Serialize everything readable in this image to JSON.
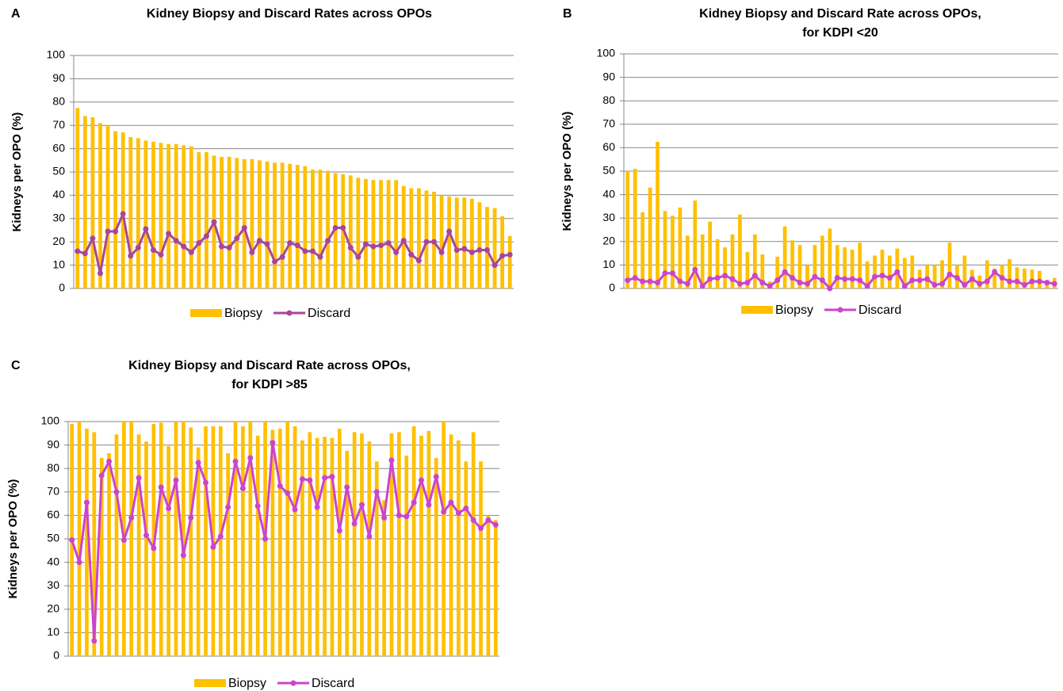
{
  "chart_data": [
    {
      "type": "bar-line",
      "label": "A",
      "title": [
        "Kidney Biopsy and Discard Rates across OPOs"
      ],
      "ylabel": "Kidneys per OPO (%)",
      "categories": [
        null,
        null,
        null,
        null,
        null,
        null,
        null,
        null,
        null,
        null,
        null,
        null,
        null,
        null,
        null,
        null,
        null,
        null,
        null,
        null,
        null,
        null,
        null,
        null,
        null,
        null,
        null,
        null,
        null,
        null,
        null,
        null,
        null,
        null,
        null,
        null,
        null,
        null,
        null,
        null,
        null,
        null,
        null,
        null,
        null,
        null,
        null,
        null,
        null,
        null,
        null,
        null,
        null,
        null,
        null,
        null,
        null,
        null
      ],
      "series": [
        {
          "name": "Biopsy",
          "type": "bar",
          "color": "#FFC000",
          "values": [
            77.5,
            74,
            73.5,
            71,
            70,
            67.5,
            67,
            65,
            64.5,
            63.5,
            63,
            62.5,
            62,
            62,
            61.5,
            61,
            58.5,
            58.5,
            57,
            56.5,
            56.5,
            56,
            55.5,
            55.5,
            55,
            54.5,
            54,
            54,
            53.5,
            53,
            52.5,
            51,
            51,
            50.5,
            49.5,
            49,
            48.5,
            47.5,
            47,
            46.5,
            46.5,
            46.5,
            46.5,
            44,
            43,
            43,
            42,
            41.5,
            40,
            39.5,
            39,
            39,
            38.5,
            37,
            35,
            34.5,
            31,
            22.5
          ]
        },
        {
          "name": "Discard",
          "type": "line",
          "color": "#A8459C",
          "values": [
            16,
            15,
            21.5,
            6.5,
            24.5,
            24.5,
            32,
            14,
            17.5,
            25.5,
            16.5,
            14.5,
            23.5,
            20.5,
            18,
            15.5,
            19.5,
            22.5,
            28.5,
            18,
            17.5,
            21.5,
            26,
            15.5,
            20.5,
            19,
            11.5,
            13.5,
            19.5,
            18.5,
            16,
            16,
            13.5,
            20.5,
            26,
            26,
            17.5,
            13.5,
            19,
            18,
            18.5,
            19.5,
            15.5,
            20.5,
            14.5,
            12,
            20,
            20,
            15.5,
            24.5,
            16.5,
            17,
            15.5,
            16.5,
            16.5,
            10,
            14,
            14.5
          ]
        }
      ],
      "ylim": [
        0,
        100
      ],
      "yticks": [
        0,
        10,
        20,
        30,
        40,
        50,
        60,
        70,
        80,
        90,
        100
      ],
      "grid": true,
      "legend": "bottom"
    },
    {
      "type": "bar-line",
      "label": "B",
      "title": [
        "Kidney Biopsy and Discard Rate across OPOs,",
        "for KDPI <20"
      ],
      "ylabel": "Kidneys per OPO (%)",
      "categories": [
        null,
        null,
        null,
        null,
        null,
        null,
        null,
        null,
        null,
        null,
        null,
        null,
        null,
        null,
        null,
        null,
        null,
        null,
        null,
        null,
        null,
        null,
        null,
        null,
        null,
        null,
        null,
        null,
        null,
        null,
        null,
        null,
        null,
        null,
        null,
        null,
        null,
        null,
        null,
        null,
        null,
        null,
        null,
        null,
        null,
        null,
        null,
        null,
        null,
        null,
        null,
        null,
        null,
        null,
        null,
        null,
        null,
        null
      ],
      "series": [
        {
          "name": "Biopsy",
          "type": "bar",
          "color": "#FFC000",
          "values": [
            50,
            51,
            32.5,
            43,
            62.5,
            33,
            31,
            34.5,
            22.5,
            37.5,
            23,
            28.5,
            21,
            17.5,
            23,
            31.5,
            15.5,
            23,
            14.5,
            3,
            13.5,
            26.5,
            20.5,
            18.5,
            10,
            18.5,
            22.5,
            25.5,
            18.5,
            17.5,
            16.5,
            19.5,
            11.5,
            14,
            16.5,
            14,
            17,
            13,
            14,
            8,
            10,
            10,
            12,
            19.5,
            10,
            14,
            8,
            5.5,
            12,
            8.5,
            10,
            12.5,
            9,
            8.5,
            8,
            7.5,
            3,
            4.5
          ]
        },
        {
          "name": "Discard",
          "type": "line",
          "color": "#CC44CC",
          "values": [
            3.5,
            4.5,
            3,
            3,
            2.5,
            6.5,
            6.5,
            3,
            2,
            8,
            1,
            4,
            4.5,
            5.5,
            4,
            2,
            2.5,
            5.5,
            2.5,
            1,
            3.5,
            7,
            4.5,
            2.5,
            2,
            5,
            3.5,
            0,
            4.5,
            4,
            4,
            3.5,
            1,
            5,
            5.5,
            4.5,
            7,
            1,
            3.5,
            3.5,
            4,
            1.5,
            2,
            6,
            4.5,
            1.5,
            4,
            2,
            3,
            7,
            4.5,
            3,
            3,
            1.5,
            3,
            3,
            2.5,
            2
          ]
        }
      ],
      "ylim": [
        0,
        100
      ],
      "yticks": [
        0,
        10,
        20,
        30,
        40,
        50,
        60,
        70,
        80,
        90,
        100
      ],
      "grid": true,
      "legend": "bottom"
    },
    {
      "type": "bar-line",
      "label": "C",
      "title": [
        "Kidney Biopsy and Discard Rate across OPOs,",
        "for KDPI >85"
      ],
      "ylabel": "Kidneys per OPO (%)",
      "categories": [
        null,
        null,
        null,
        null,
        null,
        null,
        null,
        null,
        null,
        null,
        null,
        null,
        null,
        null,
        null,
        null,
        null,
        null,
        null,
        null,
        null,
        null,
        null,
        null,
        null,
        null,
        null,
        null,
        null,
        null,
        null,
        null,
        null,
        null,
        null,
        null,
        null,
        null,
        null,
        null,
        null,
        null,
        null,
        null,
        null,
        null,
        null,
        null,
        null,
        null,
        null,
        null,
        null,
        null,
        null,
        null,
        null,
        null
      ],
      "series": [
        {
          "name": "Biopsy",
          "type": "bar",
          "color": "#FFC000",
          "values": [
            99,
            100,
            97,
            95.5,
            84.5,
            86.5,
            94.5,
            100,
            100,
            94.5,
            91.5,
            99,
            99.5,
            89.5,
            100,
            100,
            97.5,
            89,
            98,
            98,
            98,
            86.5,
            100,
            98,
            100,
            94,
            100,
            96.5,
            97,
            100,
            98,
            92,
            95.5,
            93,
            93.5,
            93,
            97,
            87.5,
            95.5,
            95,
            91.5,
            83,
            66.5,
            95,
            95.5,
            85.5,
            98,
            94,
            96,
            84.5,
            100,
            94.5,
            92,
            83,
            95.5,
            83,
            60,
            58
          ]
        },
        {
          "name": "Discard",
          "type": "line",
          "color": "#CC44CC",
          "values": [
            49.5,
            40,
            65.5,
            6.5,
            77,
            83,
            70,
            49.5,
            59,
            76,
            51.5,
            46,
            72,
            63,
            75,
            43,
            59,
            82.5,
            74,
            46.5,
            51,
            63.5,
            83,
            71.5,
            84.5,
            64,
            50,
            91,
            72.5,
            69.5,
            62.5,
            75.5,
            75,
            63.5,
            76,
            76.5,
            53.5,
            72,
            56.5,
            64.5,
            51,
            70,
            59,
            83.5,
            60,
            59.5,
            65.5,
            75,
            64.5,
            76.5,
            61.5,
            65.5,
            61,
            63,
            58,
            54.5,
            58,
            56
          ]
        }
      ],
      "ylim": [
        0,
        100
      ],
      "yticks": [
        0,
        10,
        20,
        30,
        40,
        50,
        60,
        70,
        80,
        90,
        100
      ],
      "grid": true,
      "legend": "bottom"
    }
  ]
}
